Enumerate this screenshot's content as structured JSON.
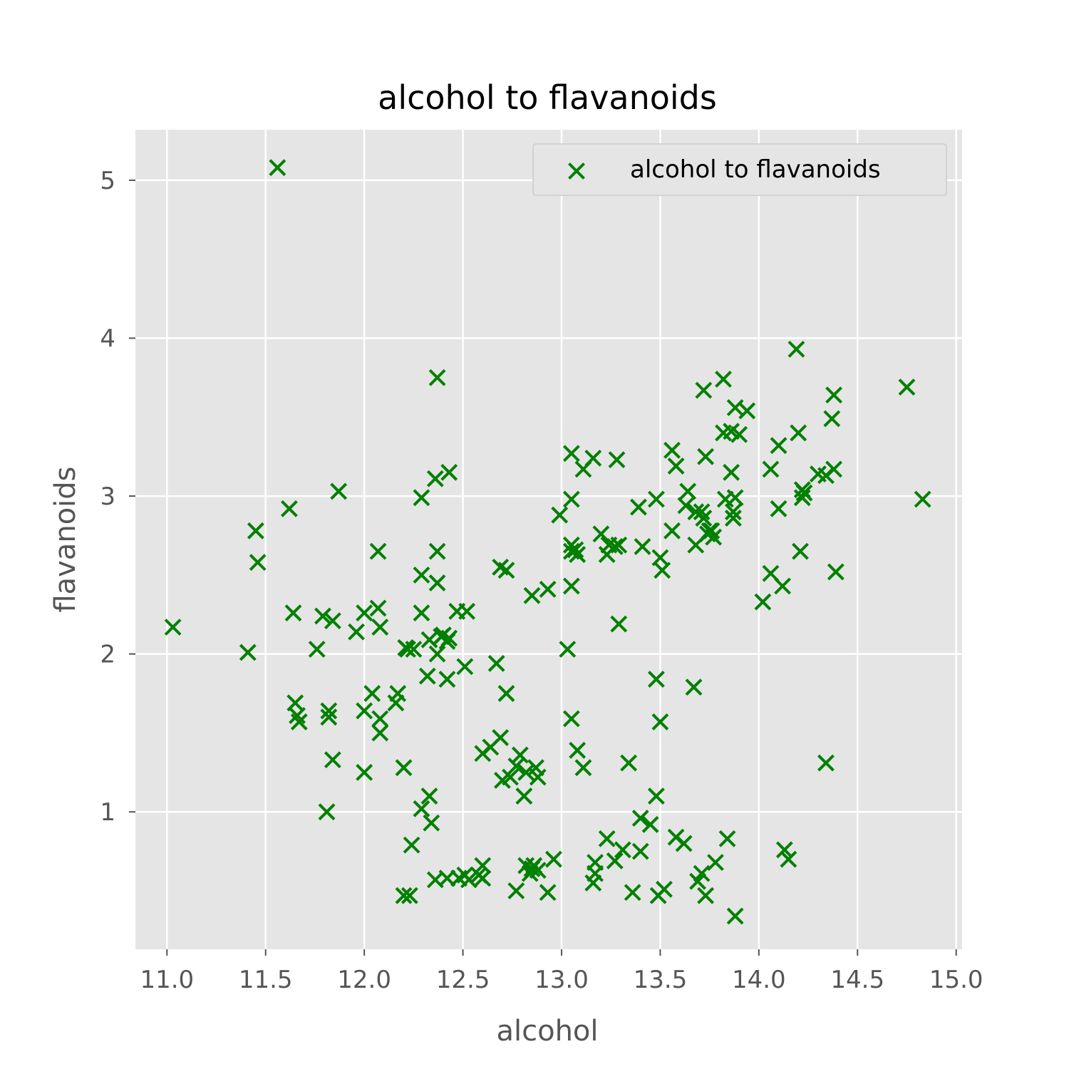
{
  "chart_data": {
    "type": "scatter",
    "title": "alcohol to flavanoids",
    "xlabel": "alcohol",
    "ylabel": "flavanoids",
    "xlim": [
      10.84,
      15.03
    ],
    "ylim": [
      0.13,
      5.32
    ],
    "xticks": [
      "11.0",
      "11.5",
      "12.0",
      "12.5",
      "13.0",
      "13.5",
      "14.0",
      "14.5",
      "15.0"
    ],
    "xtick_values": [
      11.0,
      11.5,
      12.0,
      12.5,
      13.0,
      13.5,
      14.0,
      14.5,
      15.0
    ],
    "yticks": [
      "1",
      "2",
      "3",
      "4",
      "5"
    ],
    "ytick_values": [
      1,
      2,
      3,
      4,
      5
    ],
    "grid": true,
    "legend_position": "top-right",
    "background_color": "#e5e5e5",
    "grid_color": "#ffffff",
    "series": [
      {
        "name": "alcohol to flavanoids",
        "marker": "x",
        "color": "#008000",
        "points": [
          [
            11.03,
            2.17
          ],
          [
            11.41,
            2.01
          ],
          [
            11.45,
            2.78
          ],
          [
            11.46,
            2.58
          ],
          [
            11.56,
            5.08
          ],
          [
            11.62,
            2.92
          ],
          [
            11.64,
            2.26
          ],
          [
            11.65,
            1.69
          ],
          [
            11.66,
            1.61
          ],
          [
            11.67,
            1.57
          ],
          [
            11.76,
            2.03
          ],
          [
            11.79,
            2.24
          ],
          [
            11.81,
            1.0
          ],
          [
            11.82,
            1.6
          ],
          [
            11.82,
            1.64
          ],
          [
            11.84,
            1.33
          ],
          [
            11.84,
            2.21
          ],
          [
            11.87,
            3.03
          ],
          [
            11.96,
            2.14
          ],
          [
            12.0,
            1.25
          ],
          [
            12.0,
            2.26
          ],
          [
            12.0,
            1.64
          ],
          [
            12.04,
            1.75
          ],
          [
            12.07,
            2.65
          ],
          [
            12.07,
            2.29
          ],
          [
            12.08,
            2.17
          ],
          [
            12.08,
            1.59
          ],
          [
            12.08,
            1.5
          ],
          [
            12.16,
            1.69
          ],
          [
            12.17,
            1.75
          ],
          [
            12.2,
            0.47
          ],
          [
            12.2,
            1.28
          ],
          [
            12.21,
            2.04
          ],
          [
            12.22,
            2.03
          ],
          [
            12.23,
            0.47
          ],
          [
            12.24,
            0.79
          ],
          [
            12.25,
            2.03
          ],
          [
            12.29,
            2.99
          ],
          [
            12.29,
            2.5
          ],
          [
            12.29,
            2.26
          ],
          [
            12.29,
            1.02
          ],
          [
            12.32,
            1.86
          ],
          [
            12.33,
            1.1
          ],
          [
            12.33,
            2.09
          ],
          [
            12.34,
            0.93
          ],
          [
            12.36,
            0.57
          ],
          [
            12.36,
            3.11
          ],
          [
            12.37,
            3.75
          ],
          [
            12.37,
            2.45
          ],
          [
            12.37,
            2.65
          ],
          [
            12.37,
            2.0
          ],
          [
            12.39,
            2.11
          ],
          [
            12.4,
            2.12
          ],
          [
            12.42,
            0.58
          ],
          [
            12.42,
            1.84
          ],
          [
            12.42,
            2.08
          ],
          [
            12.43,
            3.15
          ],
          [
            12.43,
            2.1
          ],
          [
            12.47,
            2.27
          ],
          [
            12.48,
            0.58
          ],
          [
            12.51,
            1.92
          ],
          [
            12.51,
            0.6
          ],
          [
            12.52,
            2.27
          ],
          [
            12.53,
            0.57
          ],
          [
            12.58,
            0.6
          ],
          [
            12.6,
            1.37
          ],
          [
            12.6,
            0.58
          ],
          [
            12.6,
            0.66
          ],
          [
            12.64,
            1.41
          ],
          [
            12.67,
            1.94
          ],
          [
            12.69,
            1.47
          ],
          [
            12.69,
            2.55
          ],
          [
            12.7,
            1.2
          ],
          [
            12.72,
            2.53
          ],
          [
            12.72,
            1.75
          ],
          [
            12.74,
            1.22
          ],
          [
            12.77,
            0.5
          ],
          [
            12.77,
            1.29
          ],
          [
            12.79,
            1.36
          ],
          [
            12.81,
            1.1
          ],
          [
            12.82,
            1.25
          ],
          [
            12.82,
            0.66
          ],
          [
            12.84,
            0.61
          ],
          [
            12.85,
            2.37
          ],
          [
            12.85,
            0.64
          ],
          [
            12.86,
            0.66
          ],
          [
            12.87,
            1.28
          ],
          [
            12.88,
            0.63
          ],
          [
            12.88,
            1.22
          ],
          [
            12.93,
            2.41
          ],
          [
            12.93,
            0.49
          ],
          [
            12.96,
            0.7
          ],
          [
            12.99,
            2.88
          ],
          [
            13.03,
            2.03
          ],
          [
            13.05,
            3.27
          ],
          [
            13.05,
            2.98
          ],
          [
            13.05,
            2.43
          ],
          [
            13.05,
            2.69
          ],
          [
            13.05,
            1.59
          ],
          [
            13.05,
            2.65
          ],
          [
            13.07,
            2.66
          ],
          [
            13.08,
            1.39
          ],
          [
            13.08,
            2.63
          ],
          [
            13.11,
            1.28
          ],
          [
            13.11,
            3.17
          ],
          [
            13.16,
            3.24
          ],
          [
            13.16,
            0.55
          ],
          [
            13.17,
            0.68
          ],
          [
            13.17,
            0.61
          ],
          [
            13.2,
            2.76
          ],
          [
            13.23,
            2.63
          ],
          [
            13.23,
            0.83
          ],
          [
            13.24,
            2.69
          ],
          [
            13.27,
            0.69
          ],
          [
            13.27,
            2.68
          ],
          [
            13.28,
            3.23
          ],
          [
            13.29,
            2.19
          ],
          [
            13.29,
            2.69
          ],
          [
            13.31,
            0.76
          ],
          [
            13.34,
            1.31
          ],
          [
            13.36,
            0.49
          ],
          [
            13.39,
            2.93
          ],
          [
            13.4,
            0.96
          ],
          [
            13.4,
            0.75
          ],
          [
            13.41,
            2.68
          ],
          [
            13.45,
            0.92
          ],
          [
            13.48,
            2.98
          ],
          [
            13.48,
            1.84
          ],
          [
            13.48,
            1.1
          ],
          [
            13.49,
            0.47
          ],
          [
            13.5,
            2.61
          ],
          [
            13.5,
            1.57
          ],
          [
            13.51,
            2.53
          ],
          [
            13.52,
            0.51
          ],
          [
            13.56,
            3.29
          ],
          [
            13.56,
            2.78
          ],
          [
            13.58,
            3.19
          ],
          [
            13.58,
            0.84
          ],
          [
            13.62,
            0.8
          ],
          [
            13.63,
            2.94
          ],
          [
            13.64,
            3.03
          ],
          [
            13.67,
            1.79
          ],
          [
            13.68,
            2.9
          ],
          [
            13.68,
            2.69
          ],
          [
            13.69,
            0.56
          ],
          [
            13.71,
            0.61
          ],
          [
            13.71,
            2.9
          ],
          [
            13.72,
            3.67
          ],
          [
            13.72,
            2.86
          ],
          [
            13.73,
            3.25
          ],
          [
            13.73,
            0.47
          ],
          [
            13.74,
            2.76
          ],
          [
            13.75,
            2.78
          ],
          [
            13.76,
            2.78
          ],
          [
            13.77,
            2.74
          ],
          [
            13.78,
            0.68
          ],
          [
            13.82,
            3.74
          ],
          [
            13.82,
            3.4
          ],
          [
            13.83,
            2.98
          ],
          [
            13.84,
            0.83
          ],
          [
            13.86,
            3.15
          ],
          [
            13.86,
            3.41
          ],
          [
            13.87,
            2.9
          ],
          [
            13.87,
            2.86
          ],
          [
            13.88,
            0.34
          ],
          [
            13.88,
            3.56
          ],
          [
            13.88,
            2.99
          ],
          [
            13.9,
            3.39
          ],
          [
            13.94,
            3.54
          ],
          [
            14.02,
            2.33
          ],
          [
            14.06,
            2.51
          ],
          [
            14.06,
            3.17
          ],
          [
            14.1,
            3.32
          ],
          [
            14.1,
            2.92
          ],
          [
            14.12,
            2.43
          ],
          [
            14.13,
            0.76
          ],
          [
            14.15,
            0.7
          ],
          [
            14.19,
            3.93
          ],
          [
            14.2,
            3.4
          ],
          [
            14.21,
            2.65
          ],
          [
            14.22,
            2.99
          ],
          [
            14.22,
            3.04
          ],
          [
            14.23,
            3.02
          ],
          [
            14.3,
            3.14
          ],
          [
            14.34,
            3.13
          ],
          [
            14.34,
            1.31
          ],
          [
            14.37,
            3.49
          ],
          [
            14.38,
            3.64
          ],
          [
            14.38,
            3.17
          ],
          [
            14.39,
            2.52
          ],
          [
            14.75,
            3.69
          ],
          [
            14.83,
            2.98
          ]
        ]
      }
    ]
  }
}
